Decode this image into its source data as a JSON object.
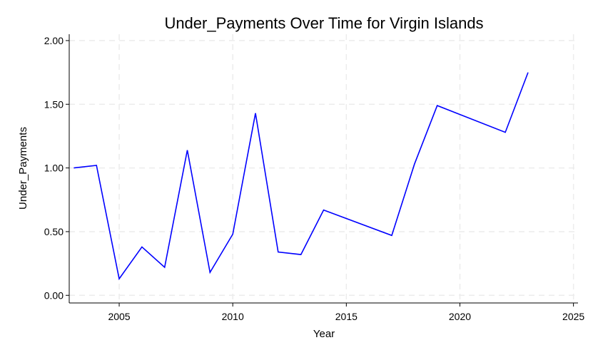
{
  "chart_data": {
    "type": "line",
    "title": "Under_Payments Over Time for Virgin Islands",
    "xlabel": "Year",
    "ylabel": "Under_Payments",
    "xlim": [
      2002.8,
      2025.2
    ],
    "ylim": [
      -0.06,
      2.05
    ],
    "xticks": [
      2005,
      2010,
      2015,
      2020,
      2025
    ],
    "xtick_labels": [
      "2005",
      "2010",
      "2015",
      "2020",
      "2025"
    ],
    "yticks": [
      0,
      0.5,
      1.0,
      1.5,
      2.0
    ],
    "ytick_labels": [
      "0.00",
      "0.50",
      "1.00",
      "1.50",
      "2.00"
    ],
    "grid": true,
    "series": [
      {
        "color": "#0000ff",
        "x": [
          2003,
          2004,
          2005,
          2006,
          2007,
          2008,
          2009,
          2010,
          2011,
          2012,
          2013,
          2014,
          2017,
          2018,
          2019,
          2022,
          2023
        ],
        "y": [
          1.0,
          1.02,
          0.13,
          0.38,
          0.22,
          1.14,
          0.18,
          0.48,
          1.43,
          0.34,
          0.32,
          0.67,
          0.47,
          1.03,
          1.49,
          1.28,
          1.75
        ]
      }
    ]
  }
}
